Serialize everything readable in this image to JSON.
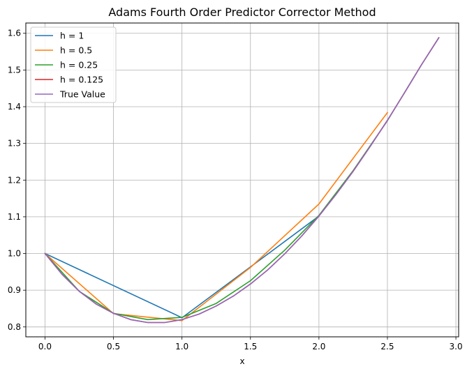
{
  "chart_data": {
    "type": "line",
    "title": "Adams Fourth Order Predictor Corrector Method",
    "xlabel": "x",
    "ylabel": "",
    "xlim": [
      -0.14,
      3.02
    ],
    "ylim": [
      0.773,
      1.628
    ],
    "xticks": [
      "0.0",
      "0.5",
      "1.0",
      "1.5",
      "2.0",
      "2.5",
      "3.0"
    ],
    "yticks": [
      "0.8",
      "0.9",
      "1.0",
      "1.1",
      "1.2",
      "1.3",
      "1.4",
      "1.5",
      "1.6"
    ],
    "grid": true,
    "legend_position": "upper-left",
    "series": [
      {
        "name": "h = 1",
        "color": "#1f77b4",
        "x": [
          0,
          1,
          2
        ],
        "y": [
          1.0,
          0.825,
          1.102
        ]
      },
      {
        "name": "h = 0.5",
        "color": "#ff7f0e",
        "x": [
          0,
          0.5,
          1,
          1.5,
          2,
          2.5
        ],
        "y": [
          1.0,
          0.836,
          0.817,
          0.962,
          1.135,
          1.384
        ]
      },
      {
        "name": "h = 0.25",
        "color": "#2ca02c",
        "x": [
          0,
          0.25,
          0.5,
          0.75,
          1,
          1.25,
          1.5,
          1.75,
          2,
          2.25,
          2.5,
          2.75,
          2.875
        ],
        "y": [
          1.0,
          0.897,
          0.837,
          0.82,
          0.826,
          0.864,
          0.926,
          1.009,
          1.104,
          1.226,
          1.362,
          1.515,
          1.588
        ]
      },
      {
        "name": "h = 0.125",
        "color": "#d62728",
        "x": [
          0,
          0.125,
          0.25,
          0.375,
          0.5,
          0.625,
          0.75,
          0.875,
          1,
          1.125,
          1.25,
          1.375,
          1.5,
          1.625,
          1.75,
          1.875,
          2,
          2.125,
          2.25,
          2.375,
          2.5,
          2.625,
          2.75,
          2.875
        ],
        "y": [
          1.0,
          0.943,
          0.897,
          0.862,
          0.837,
          0.82,
          0.812,
          0.812,
          0.82,
          0.835,
          0.857,
          0.884,
          0.917,
          0.955,
          0.999,
          1.048,
          1.102,
          1.161,
          1.224,
          1.292,
          1.363,
          1.438,
          1.515,
          1.588
        ]
      },
      {
        "name": "True Value",
        "color": "#9467bd",
        "x": [
          0,
          0.125,
          0.25,
          0.375,
          0.5,
          0.625,
          0.75,
          0.875,
          1,
          1.125,
          1.25,
          1.375,
          1.5,
          1.625,
          1.75,
          1.875,
          2,
          2.125,
          2.25,
          2.375,
          2.5,
          2.625,
          2.75,
          2.875
        ],
        "y": [
          1.0,
          0.943,
          0.897,
          0.862,
          0.837,
          0.82,
          0.812,
          0.812,
          0.82,
          0.835,
          0.857,
          0.884,
          0.917,
          0.955,
          0.999,
          1.048,
          1.102,
          1.161,
          1.224,
          1.292,
          1.363,
          1.438,
          1.515,
          1.588
        ]
      }
    ]
  }
}
